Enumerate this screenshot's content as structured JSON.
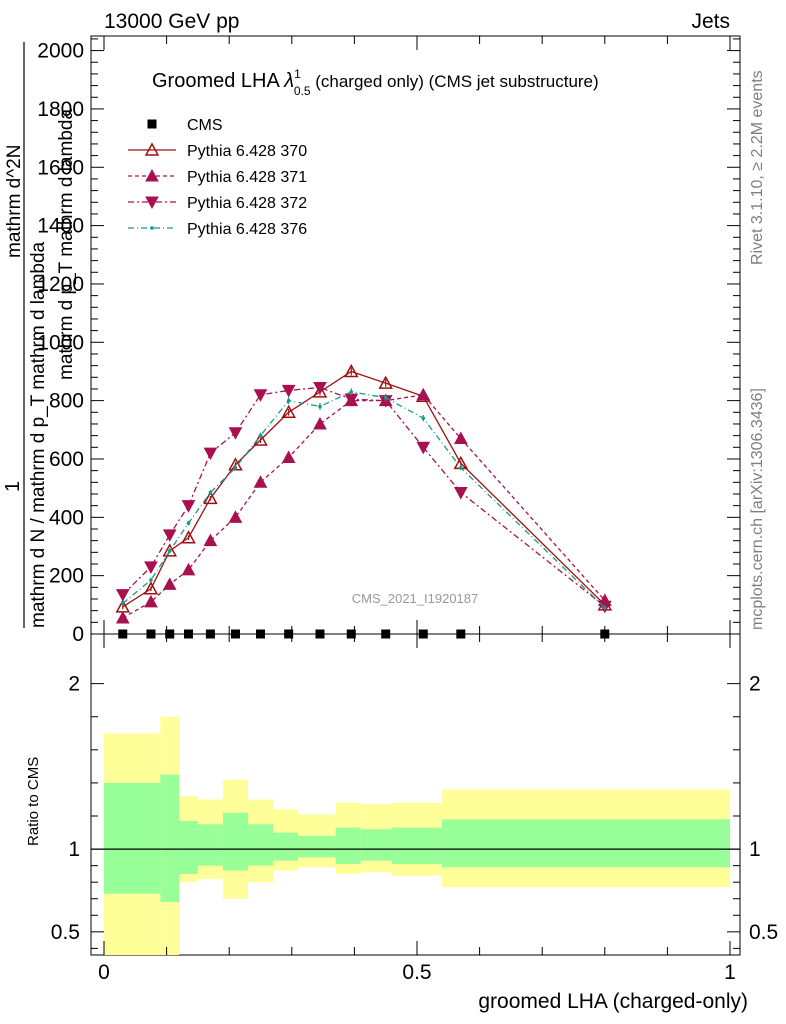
{
  "header": {
    "left": "13000 GeV pp",
    "right": "Jets"
  },
  "title": {
    "main": "Groomed LHA ",
    "lambda": "λ",
    "sup": "1",
    "sub": "0.5",
    "rest": " (charged only) (CMS jet substructure)"
  },
  "side_text": {
    "rivet": "Rivet 3.1.10, ≥ 2.2M events",
    "mcplots": "mcplots.cern.ch [arXiv:1306.3436]"
  },
  "watermark": "CMS_2021_I1920187",
  "ylabel_main": {
    "one": "1",
    "denominator": "mathrm d N / mathrm d p_T mathrm d lambda",
    "numerator_dN": "mathrm d^2N",
    "numerator_line": "mathrm d p_T mathrm d lambda"
  },
  "ylabel_ratio": "Ratio to CMS",
  "xlabel": "groomed LHA (charged-only)",
  "colors": {
    "p370": "#a01010",
    "p371": "#a8104f",
    "p372": "#a8104f",
    "p376": "#189a88",
    "band_inner": "#99ff99",
    "band_outer": "#ffff99"
  },
  "chart_data": [
    {
      "type": "line",
      "xlim": [
        0,
        1
      ],
      "ylim": [
        0,
        2050
      ],
      "y_ticks": [
        0,
        200,
        400,
        600,
        800,
        1000,
        1200,
        1400,
        1600,
        1800,
        2000
      ],
      "y_tick_labels": [
        "0",
        "200",
        "400",
        "600",
        "800",
        "1000",
        "1200",
        "1400",
        "1600",
        "1800",
        "2000"
      ],
      "legend_placement": "top-left",
      "x": [
        0.03,
        0.075,
        0.105,
        0.135,
        0.17,
        0.21,
        0.25,
        0.295,
        0.345,
        0.395,
        0.45,
        0.51,
        0.57,
        0.8
      ],
      "series": [
        {
          "name": "CMS",
          "marker": "square",
          "values": [
            0,
            0,
            0,
            0,
            0,
            0,
            0,
            0,
            0,
            0,
            0,
            0,
            0,
            0
          ]
        },
        {
          "name": "Pythia 6.428 370",
          "marker": "triangle-up-open",
          "values": [
            93,
            155,
            285,
            330,
            465,
            580,
            665,
            760,
            830,
            900,
            860,
            815,
            585,
            100
          ]
        },
        {
          "name": "Pythia 6.428 371",
          "marker": "triangle-up",
          "values": [
            55,
            110,
            170,
            220,
            320,
            400,
            520,
            605,
            720,
            800,
            800,
            820,
            670,
            115
          ]
        },
        {
          "name": "Pythia 6.428 372",
          "marker": "triangle-down",
          "values": [
            135,
            230,
            340,
            440,
            620,
            690,
            820,
            835,
            845,
            805,
            800,
            640,
            485,
            95
          ]
        },
        {
          "name": "Pythia 6.428 376",
          "marker": "dot",
          "values": [
            105,
            185,
            285,
            380,
            485,
            570,
            680,
            800,
            780,
            830,
            810,
            740,
            570,
            90
          ]
        }
      ]
    },
    {
      "type": "area",
      "xlim": [
        0,
        1
      ],
      "ylim": [
        0.36,
        2.3
      ],
      "y_ticks": [
        0.5,
        1,
        2
      ],
      "y_tick_labels": [
        "0.5",
        "1",
        "2"
      ],
      "x_ticks": [
        0,
        0.5,
        1
      ],
      "x_tick_labels": [
        "0",
        "0.5",
        "1"
      ],
      "bin_edges": [
        0,
        0.09,
        0.12,
        0.15,
        0.19,
        0.23,
        0.27,
        0.31,
        0.37,
        0.41,
        0.46,
        0.54,
        1.0
      ],
      "series": [
        {
          "name": "inner",
          "lower": [
            0.73,
            0.68,
            0.85,
            0.9,
            0.87,
            0.9,
            0.93,
            0.95,
            0.91,
            0.93,
            0.91,
            0.89
          ],
          "upper": [
            1.4,
            1.45,
            1.17,
            1.15,
            1.22,
            1.15,
            1.1,
            1.08,
            1.13,
            1.12,
            1.13,
            1.18
          ]
        },
        {
          "name": "outer",
          "lower": [
            0.36,
            0.36,
            0.8,
            0.82,
            0.7,
            0.8,
            0.87,
            0.89,
            0.85,
            0.86,
            0.84,
            0.77
          ],
          "upper": [
            1.7,
            1.8,
            1.32,
            1.3,
            1.42,
            1.3,
            1.24,
            1.21,
            1.28,
            1.27,
            1.28,
            1.36
          ]
        }
      ],
      "reference": 1
    }
  ]
}
